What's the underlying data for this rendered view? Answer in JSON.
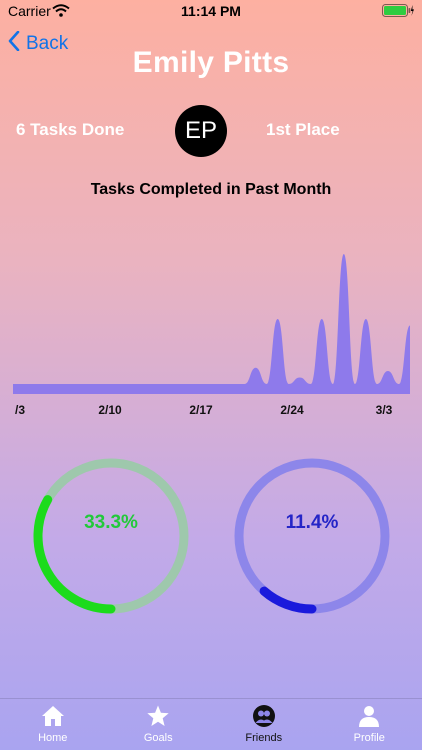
{
  "status_bar": {
    "carrier": "Carrier",
    "time": "11:14 PM"
  },
  "nav": {
    "back_label": "Back"
  },
  "profile": {
    "name": "Emily Pitts",
    "initials": "EP",
    "tasks_done": "6 Tasks Done",
    "rank": "1st Place"
  },
  "colors": {
    "gradient_top": "#FDB0A1",
    "gradient_bottom": "#A9A4F0",
    "chart_fill": "#8E7AEB",
    "ring1_track": "#9EC8AC",
    "ring1_progress": "#1CDB1C",
    "ring2_track": "#8D86EA",
    "ring2_progress": "#1A1ADC"
  },
  "chart_data": {
    "type": "area",
    "title": "Tasks Completed in Past Month",
    "x_tick_labels": [
      "/3",
      "2/10",
      "2/17",
      "2/24",
      "3/3"
    ],
    "series": [
      {
        "values": [
          0,
          0,
          0,
          0,
          0,
          0,
          0,
          0,
          0,
          0,
          0,
          0,
          0,
          0,
          0,
          0,
          0,
          0,
          0,
          0,
          0,
          0,
          0.5,
          0,
          2,
          0,
          0.2,
          0,
          2,
          0,
          4,
          0,
          2,
          0,
          0.4,
          0,
          1.8
        ]
      }
    ],
    "ylim": [
      0,
      4
    ]
  },
  "progress_rings": [
    {
      "label": "33.3%",
      "value": 0.333,
      "track_color": "#9EC8AC",
      "progress_color": "#1CDB1C",
      "text_color": "#22C93A"
    },
    {
      "label": "11.4%",
      "value": 0.114,
      "track_color": "#8D86EA",
      "progress_color": "#1A1ADC",
      "text_color": "#2525C7"
    }
  ],
  "tab_bar": {
    "tabs": [
      {
        "label": "Home",
        "icon": "home-icon"
      },
      {
        "label": "Goals",
        "icon": "star-icon"
      },
      {
        "label": "Friends",
        "icon": "friends-icon",
        "active": true
      },
      {
        "label": "Profile",
        "icon": "profile-icon"
      }
    ]
  }
}
